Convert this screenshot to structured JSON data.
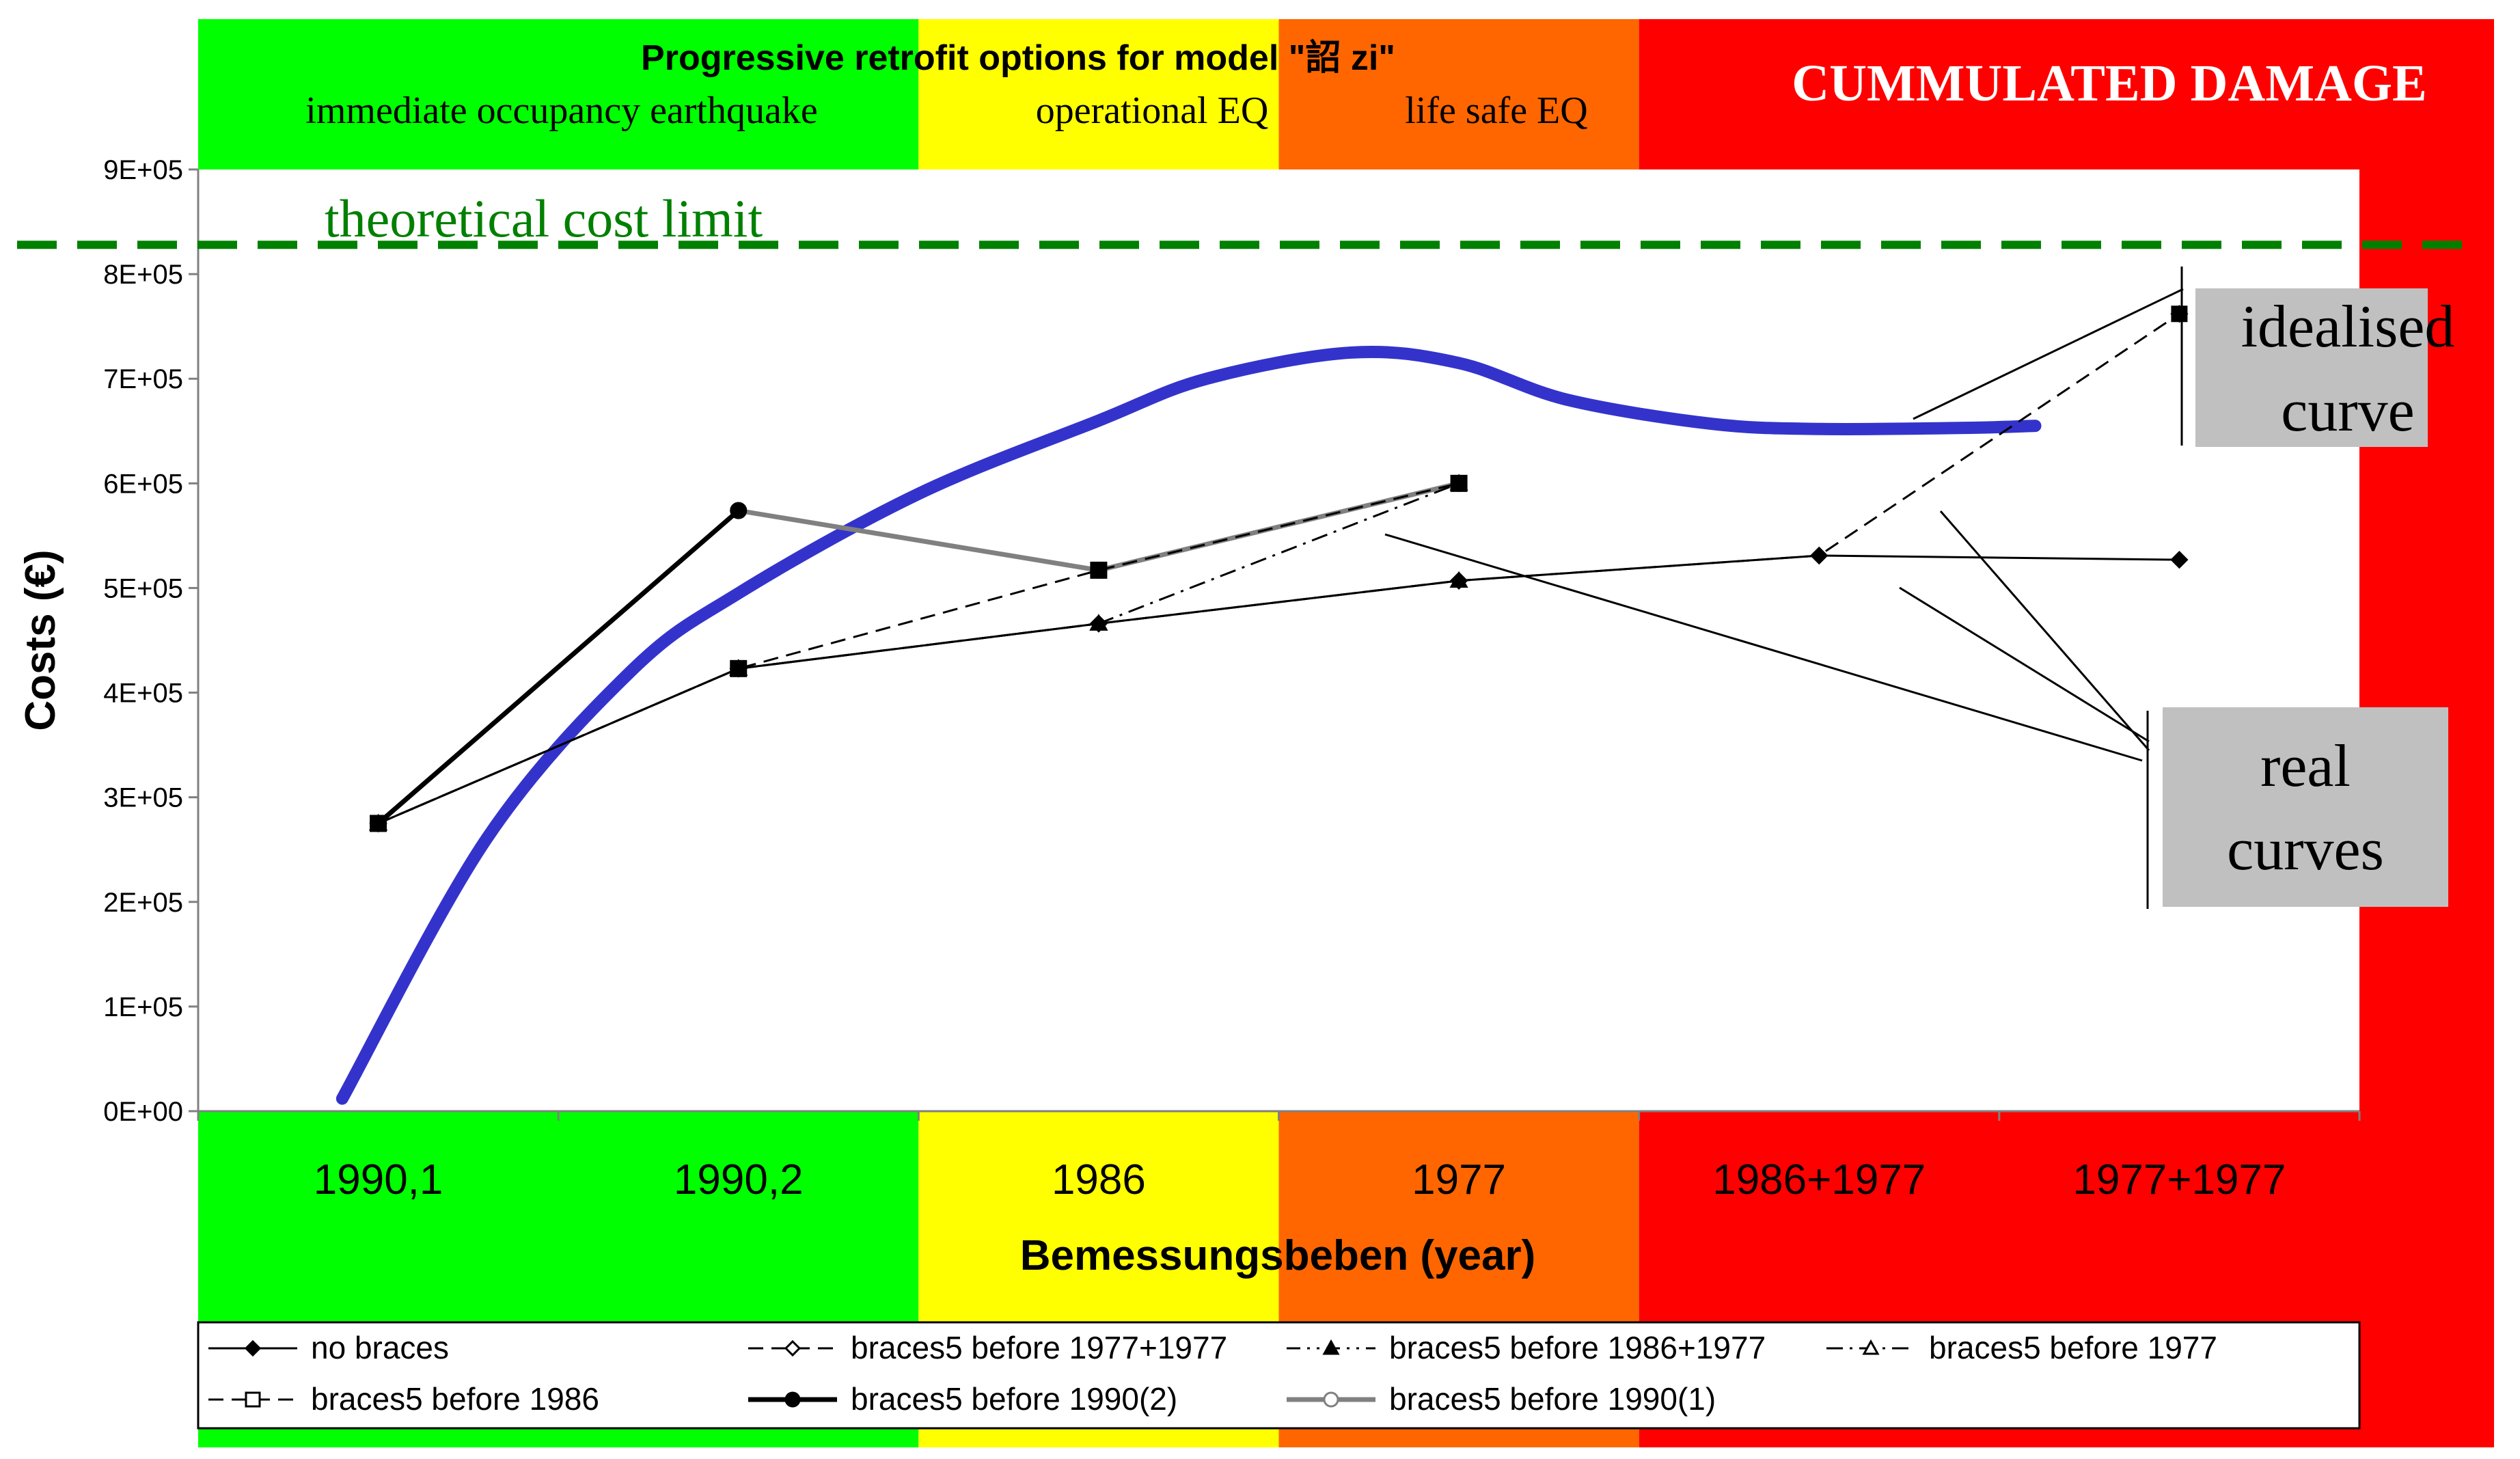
{
  "chart_data": {
    "type": "line",
    "title": "Progressive retrofit options for model \"詔 zi\"",
    "xlabel": "Bemessungsbeben (year)",
    "ylabel": "Costs (€)",
    "ylim": [
      0,
      900000
    ],
    "y_ticks": [
      "0E+00",
      "1E+05",
      "2E+05",
      "3E+05",
      "4E+05",
      "5E+05",
      "6E+05",
      "7E+05",
      "8E+05",
      "9E+05"
    ],
    "categories": [
      "1990,1",
      "1990,2",
      "1986",
      "1977",
      "1986+1977",
      "1977+1977"
    ],
    "zones": [
      {
        "name": "immediate occupancy earthquake",
        "color": "#00ff00",
        "start_category": 0,
        "end_category": 1
      },
      {
        "name": "operational EQ",
        "color": "#ffff00",
        "start_category": 2,
        "end_category": 2
      },
      {
        "name": "life safe EQ",
        "color": "#ff6600",
        "start_category": 3,
        "end_category": 3
      },
      {
        "name": "CUMMULATED DAMAGE",
        "color": "#ff0000",
        "start_category": 4,
        "end_category": 5
      }
    ],
    "series": [
      {
        "name": "no braces",
        "marker": "diamond",
        "line": "solid",
        "values": [
          275000,
          423000,
          466000,
          507000,
          531000,
          527000
        ]
      },
      {
        "name": "braces5 before 1977+1977",
        "marker": "diamond-open",
        "line": "dashed",
        "values": [
          275000,
          423000,
          466000,
          507000,
          531000,
          762000
        ]
      },
      {
        "name": "braces5 before 1986+1977",
        "marker": "triangle",
        "line": "dash-dot-dot",
        "values": [
          275000,
          423000,
          466000,
          507000,
          null,
          null
        ]
      },
      {
        "name": "braces5 before 1977",
        "marker": "triangle-open",
        "line": "dash-dot",
        "values": [
          275000,
          423000,
          466000,
          600000,
          null,
          null
        ]
      },
      {
        "name": "braces5 before 1986",
        "marker": "square-open",
        "line": "dashed",
        "values": [
          275000,
          423000,
          517000,
          600000,
          null,
          null
        ]
      },
      {
        "name": "braces5 before 1990(2)",
        "marker": "circle",
        "line": "thick-solid",
        "values": [
          275000,
          574000,
          null,
          null,
          null,
          null
        ]
      },
      {
        "name": "braces5 before 1990(1)",
        "marker": "circle-open",
        "line": "gray-solid",
        "values": [
          null,
          574000,
          517000,
          600000,
          null,
          null
        ]
      }
    ],
    "idealised_curve": {
      "color": "#3333cc",
      "x": [
        -0.1,
        0.3,
        0.7,
        1.0,
        1.5,
        2.0,
        2.3,
        2.7,
        3.0,
        3.3,
        3.7,
        4.0,
        4.4,
        4.6
      ],
      "values": [
        12000,
        260000,
        420000,
        495000,
        590000,
        660000,
        700000,
        725000,
        715000,
        680000,
        657000,
        652000,
        653000,
        655000
      ]
    },
    "theoretical_limit": {
      "value": 828000,
      "label": "theoretical cost limit",
      "color": "#008000"
    },
    "annotations": [
      "immediate occupancy earthquake",
      "operational EQ",
      "life safe EQ",
      "CUMMULATED DAMAGE",
      "idealised curve",
      "real curves"
    ],
    "legend_position": "bottom"
  },
  "labels": {
    "title": "Progressive retrofit options for model \"詔 zi\"",
    "zone_immediate": "immediate occupancy earthquake",
    "zone_operational": "operational EQ",
    "zone_life_safe": "life safe EQ",
    "zone_damage": "CUMMULATED DAMAGE",
    "theoretical_limit": "theoretical cost limit",
    "idealised_line1": "idealised",
    "idealised_line2": "curve",
    "real_line1": "real",
    "real_line2": "curves",
    "xlabel": "Bemessungsbeben (year)",
    "ylabel": "Costs (€)"
  },
  "colors": {
    "green": "#00ff00",
    "yellow": "#ffff00",
    "orange": "#ff6600",
    "red": "#ff0000",
    "limit": "#008000",
    "ideal": "#3333cc",
    "callout_box": "#c0c0c0"
  }
}
